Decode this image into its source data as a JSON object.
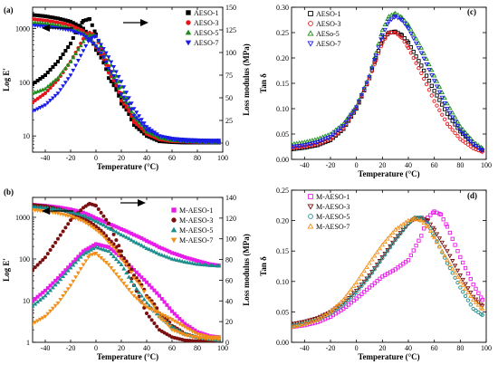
{
  "chart_data": [
    {
      "type": "scatter",
      "panel_label": "(a)",
      "xlabel": "Temperature (°C)",
      "ylabel": "Log E'",
      "ylabel_right": "Loss modulus (MPa)",
      "xlim": [
        -50,
        100
      ],
      "xticks": [
        -40,
        -20,
        0,
        20,
        40,
        60,
        80,
        100
      ],
      "ylim": [
        5,
        2500
      ],
      "yscale": "log",
      "yticks": [
        10,
        100,
        1000
      ],
      "ylim_right": [
        -10,
        150
      ],
      "yticks_right": [
        0,
        25,
        50,
        75,
        100,
        125,
        150
      ],
      "legend_position": "top-right",
      "series": [
        {
          "name": "AESO-1",
          "marker": "square",
          "filled": true,
          "color": "#000000",
          "x": [
            -50,
            -40,
            -30,
            -20,
            -10,
            0,
            10,
            20,
            30,
            40,
            50,
            60,
            70,
            80,
            90,
            97
          ],
          "y": [
            1800,
            1700,
            1550,
            1350,
            1000,
            400,
            120,
            40,
            17,
            10,
            8.5,
            8,
            7.8,
            7.7,
            7.6,
            7.6
          ],
          "x_right": [
            -50,
            -40,
            -30,
            -20,
            -15,
            -10,
            -5,
            0,
            10,
            20,
            30,
            40,
            50,
            60,
            70,
            80,
            90,
            97
          ],
          "y_right": [
            65,
            75,
            90,
            110,
            125,
            135,
            137,
            120,
            80,
            50,
            20,
            8,
            2,
            1,
            0.5,
            0.5,
            0.5,
            0.5
          ]
        },
        {
          "name": "AESO-3",
          "marker": "circle",
          "filled": true,
          "color": "#e8141c",
          "x": [
            -50,
            -40,
            -30,
            -20,
            -10,
            0,
            10,
            20,
            30,
            40,
            50,
            60,
            70,
            80,
            90,
            97
          ],
          "y": [
            1500,
            1420,
            1300,
            1150,
            900,
            450,
            150,
            45,
            18,
            11,
            9,
            8.5,
            8.2,
            8.1,
            8,
            8
          ],
          "x_right": [
            -50,
            -40,
            -30,
            -20,
            -10,
            -5,
            0,
            10,
            20,
            30,
            40,
            50,
            60,
            70,
            80,
            90,
            97
          ],
          "y_right": [
            45,
            55,
            70,
            90,
            115,
            122,
            118,
            85,
            55,
            25,
            10,
            4,
            2,
            1.5,
            1,
            1,
            1
          ]
        },
        {
          "name": "AESO-5",
          "marker": "triangle-up",
          "filled": true,
          "color": "#1e8c1e",
          "x": [
            -50,
            -40,
            -30,
            -20,
            -10,
            0,
            10,
            20,
            30,
            40,
            50,
            60,
            70,
            80,
            90,
            97
          ],
          "y": [
            1300,
            1250,
            1150,
            1020,
            820,
            480,
            170,
            55,
            22,
            12,
            9.5,
            8.8,
            8.5,
            8.3,
            8.2,
            8.2
          ],
          "x_right": [
            -50,
            -40,
            -30,
            -20,
            -10,
            -5,
            0,
            10,
            20,
            30,
            40,
            50,
            60,
            70,
            80,
            90,
            97
          ],
          "y_right": [
            55,
            60,
            72,
            90,
            112,
            120,
            118,
            92,
            62,
            32,
            14,
            6,
            3,
            2,
            1.5,
            1,
            1
          ]
        },
        {
          "name": "AESO-7",
          "marker": "triangle-down",
          "filled": true,
          "color": "#1c1ce8",
          "x": [
            -50,
            -40,
            -30,
            -20,
            -10,
            0,
            10,
            20,
            30,
            40,
            50,
            60,
            70,
            80,
            90,
            97
          ],
          "y": [
            1150,
            1100,
            1020,
            930,
            760,
            470,
            180,
            60,
            24,
            13,
            10,
            9,
            8.6,
            8.4,
            8.3,
            8.3
          ],
          "x_right": [
            -50,
            -40,
            -30,
            -20,
            -10,
            -5,
            0,
            10,
            20,
            30,
            40,
            50,
            60,
            70,
            80,
            90,
            97
          ],
          "y_right": [
            35,
            42,
            55,
            75,
            102,
            115,
            118,
            95,
            68,
            38,
            18,
            8,
            4,
            2,
            1.5,
            1,
            1
          ]
        }
      ]
    },
    {
      "type": "scatter",
      "panel_label": "(b)",
      "xlabel": "Temperature (°C)",
      "ylabel": "Log E'",
      "ylabel_right": "Loss modulus (MPa)",
      "xlim": [
        -50,
        100
      ],
      "xticks": [
        -40,
        -20,
        0,
        20,
        40,
        60,
        80,
        100
      ],
      "ylim": [
        1,
        3000
      ],
      "yscale": "log",
      "yticks": [
        1,
        10,
        100,
        1000
      ],
      "ylim_right": [
        0,
        140
      ],
      "yticks_right": [
        0,
        20,
        40,
        60,
        80,
        100,
        120,
        140
      ],
      "legend_position": "top-right",
      "series": [
        {
          "name": "M-AESO-1",
          "marker": "square",
          "filled": true,
          "color": "#e81ce8",
          "x": [
            -50,
            -40,
            -30,
            -20,
            -10,
            0,
            10,
            20,
            30,
            40,
            50,
            60,
            70,
            80,
            90,
            97
          ],
          "y": [
            2000,
            1900,
            1750,
            1550,
            1300,
            950,
            700,
            520,
            380,
            270,
            190,
            140,
            110,
            90,
            75,
            70
          ],
          "x_right": [
            -50,
            -40,
            -30,
            -20,
            -10,
            0,
            10,
            20,
            30,
            40,
            50,
            60,
            70,
            80,
            90,
            97
          ],
          "y_right": [
            40,
            50,
            62,
            75,
            88,
            95,
            92,
            82,
            70,
            58,
            45,
            30,
            18,
            10,
            6,
            5
          ]
        },
        {
          "name": "M-AESO-3",
          "marker": "circle",
          "filled": true,
          "color": "#7a0f0f",
          "x": [
            -50,
            -40,
            -30,
            -20,
            -10,
            0,
            10,
            20,
            30,
            40,
            50,
            60,
            70,
            80,
            90,
            97
          ],
          "y": [
            2000,
            1850,
            1600,
            1300,
            950,
            600,
            300,
            120,
            40,
            13,
            5,
            2.5,
            1.6,
            1.3,
            1.2,
            1.1
          ],
          "x_right": [
            -50,
            -40,
            -30,
            -20,
            -10,
            -5,
            0,
            10,
            20,
            30,
            40,
            50,
            60,
            70,
            80,
            90,
            97
          ],
          "y_right": [
            70,
            82,
            100,
            118,
            130,
            134,
            132,
            115,
            88,
            55,
            28,
            12,
            5,
            2,
            1,
            1,
            1
          ]
        },
        {
          "name": "M-AESO-5",
          "marker": "triangle-up",
          "filled": true,
          "color": "#1c8c8c",
          "x": [
            -50,
            -40,
            -30,
            -20,
            -10,
            0,
            10,
            20,
            30,
            40,
            50,
            60,
            70,
            80,
            90,
            97
          ],
          "y": [
            1800,
            1700,
            1550,
            1350,
            1100,
            800,
            550,
            380,
            260,
            180,
            130,
            100,
            85,
            75,
            70,
            68
          ],
          "x_right": [
            -50,
            -40,
            -30,
            -20,
            -10,
            0,
            10,
            20,
            30,
            40,
            50,
            60,
            70,
            80,
            90,
            97
          ],
          "y_right": [
            35,
            45,
            58,
            72,
            85,
            92,
            88,
            75,
            55,
            38,
            25,
            15,
            8,
            5,
            3,
            2
          ]
        },
        {
          "name": "M-AESO-7",
          "marker": "triangle-down",
          "filled": true,
          "color": "#f0901c",
          "x": [
            -50,
            -40,
            -30,
            -20,
            -10,
            0,
            10,
            20,
            30,
            40,
            50,
            60,
            70,
            80,
            90,
            97
          ],
          "y": [
            1500,
            1400,
            1250,
            1050,
            800,
            500,
            250,
            100,
            35,
            12,
            4,
            2,
            1.5,
            1.3,
            1.2,
            1.2
          ],
          "x_right": [
            -50,
            -40,
            -30,
            -20,
            -10,
            -5,
            0,
            10,
            20,
            30,
            40,
            50,
            60,
            70,
            80,
            90,
            97
          ],
          "y_right": [
            18,
            25,
            38,
            55,
            75,
            84,
            86,
            75,
            60,
            45,
            34,
            28,
            22,
            15,
            8,
            5,
            5
          ]
        }
      ]
    },
    {
      "type": "scatter",
      "panel_label": "(c)",
      "xlabel": "Temperature (°C)",
      "ylabel": "Tan δ",
      "xlim": [
        -50,
        100
      ],
      "xticks": [
        -40,
        -20,
        0,
        20,
        40,
        60,
        80,
        100
      ],
      "ylim": [
        0,
        0.3
      ],
      "yticks": [
        0.0,
        0.05,
        0.1,
        0.15,
        0.2,
        0.25,
        0.3
      ],
      "legend_position": "top-left",
      "series": [
        {
          "name": "AESO-1",
          "marker": "square",
          "filled": false,
          "color": "#000000",
          "x": [
            -50,
            -40,
            -30,
            -20,
            -10,
            0,
            10,
            15,
            20,
            25,
            30,
            35,
            40,
            50,
            60,
            70,
            80,
            90,
            97
          ],
          "y": [
            0.02,
            0.023,
            0.028,
            0.038,
            0.06,
            0.1,
            0.16,
            0.2,
            0.235,
            0.25,
            0.252,
            0.245,
            0.23,
            0.185,
            0.135,
            0.09,
            0.055,
            0.03,
            0.018
          ]
        },
        {
          "name": "AESO-3",
          "marker": "circle",
          "filled": false,
          "color": "#e8141c",
          "x": [
            -50,
            -40,
            -30,
            -20,
            -10,
            0,
            10,
            15,
            20,
            25,
            30,
            35,
            40,
            50,
            60,
            70,
            80,
            90,
            97
          ],
          "y": [
            0.022,
            0.025,
            0.03,
            0.04,
            0.062,
            0.102,
            0.16,
            0.195,
            0.23,
            0.25,
            0.25,
            0.24,
            0.22,
            0.17,
            0.115,
            0.07,
            0.04,
            0.022,
            0.015
          ]
        },
        {
          "name": "AESo-5",
          "marker": "triangle-up",
          "filled": false,
          "color": "#1e8c1e",
          "x": [
            -50,
            -40,
            -30,
            -20,
            -10,
            0,
            10,
            15,
            20,
            25,
            30,
            35,
            40,
            50,
            60,
            70,
            80,
            90,
            97
          ],
          "y": [
            0.03,
            0.034,
            0.04,
            0.05,
            0.07,
            0.105,
            0.165,
            0.21,
            0.255,
            0.282,
            0.288,
            0.28,
            0.265,
            0.22,
            0.165,
            0.11,
            0.065,
            0.035,
            0.022
          ]
        },
        {
          "name": "AESO-7",
          "marker": "triangle-down",
          "filled": false,
          "color": "#1c1ce8",
          "x": [
            -50,
            -40,
            -30,
            -20,
            -10,
            0,
            10,
            15,
            20,
            25,
            30,
            35,
            40,
            50,
            60,
            70,
            80,
            90,
            97
          ],
          "y": [
            0.025,
            0.028,
            0.034,
            0.045,
            0.066,
            0.103,
            0.163,
            0.205,
            0.245,
            0.272,
            0.282,
            0.275,
            0.258,
            0.21,
            0.155,
            0.1,
            0.058,
            0.03,
            0.018
          ]
        }
      ]
    },
    {
      "type": "scatter",
      "panel_label": "(d)",
      "xlabel": "Temperature (°C)",
      "ylabel": "Tan δ",
      "xlim": [
        -50,
        100
      ],
      "xticks": [
        -40,
        -20,
        0,
        20,
        40,
        60,
        80,
        100
      ],
      "ylim": [
        0,
        0.25
      ],
      "yticks": [
        0.0,
        0.05,
        0.1,
        0.15,
        0.2,
        0.25
      ],
      "legend_position": "top-left",
      "series": [
        {
          "name": "M-AESO-1",
          "marker": "square",
          "filled": false,
          "color": "#e81ce8",
          "x": [
            -50,
            -40,
            -30,
            -20,
            -10,
            0,
            10,
            20,
            30,
            40,
            50,
            55,
            60,
            65,
            70,
            80,
            90,
            97
          ],
          "y": [
            0.025,
            0.028,
            0.033,
            0.042,
            0.055,
            0.072,
            0.09,
            0.108,
            0.12,
            0.135,
            0.175,
            0.205,
            0.215,
            0.21,
            0.19,
            0.14,
            0.095,
            0.07
          ]
        },
        {
          "name": "M-AESO-3",
          "marker": "triangle-down",
          "filled": false,
          "color": "#7a0f0f",
          "x": [
            -50,
            -40,
            -30,
            -20,
            -10,
            0,
            10,
            20,
            30,
            40,
            45,
            50,
            55,
            60,
            70,
            80,
            90,
            97
          ],
          "y": [
            0.03,
            0.034,
            0.04,
            0.05,
            0.065,
            0.085,
            0.11,
            0.14,
            0.17,
            0.195,
            0.203,
            0.205,
            0.2,
            0.185,
            0.15,
            0.11,
            0.075,
            0.06
          ]
        },
        {
          "name": "M-AESO-5",
          "marker": "circle",
          "filled": false,
          "color": "#1c8c8c",
          "x": [
            -50,
            -40,
            -30,
            -20,
            -10,
            0,
            10,
            20,
            30,
            40,
            45,
            50,
            55,
            60,
            70,
            80,
            90,
            97
          ],
          "y": [
            0.027,
            0.031,
            0.037,
            0.047,
            0.062,
            0.082,
            0.108,
            0.138,
            0.168,
            0.195,
            0.205,
            0.205,
            0.195,
            0.175,
            0.13,
            0.09,
            0.055,
            0.045
          ]
        },
        {
          "name": "M-AESO-7",
          "marker": "triangle-up",
          "filled": false,
          "color": "#f0901c",
          "x": [
            -50,
            -40,
            -30,
            -20,
            -10,
            0,
            10,
            20,
            30,
            40,
            45,
            50,
            55,
            60,
            70,
            80,
            90,
            97
          ],
          "y": [
            0.025,
            0.03,
            0.037,
            0.05,
            0.07,
            0.098,
            0.13,
            0.16,
            0.185,
            0.2,
            0.203,
            0.2,
            0.19,
            0.172,
            0.135,
            0.1,
            0.07,
            0.055
          ]
        }
      ]
    }
  ]
}
